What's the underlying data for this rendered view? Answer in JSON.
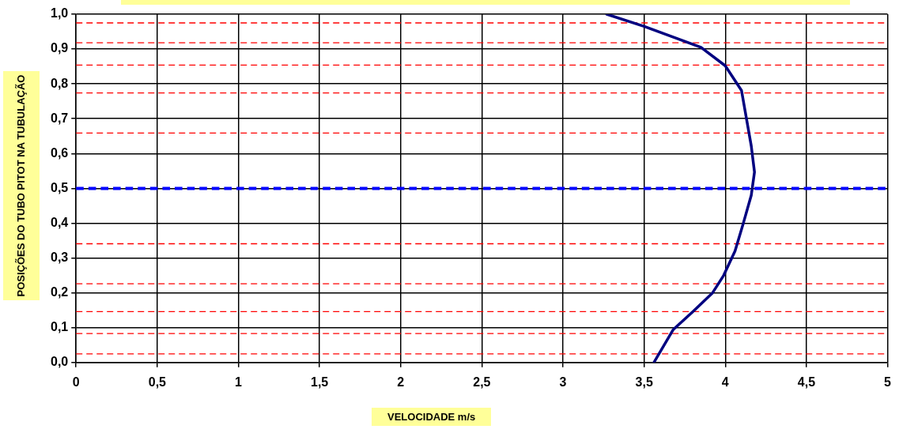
{
  "chart_data": {
    "type": "line",
    "xlabel": "VELOCIDADE m/s",
    "ylabel": "POSIÇÕES DO TUBO PITOT NA TUBULAÇÃO",
    "series": [
      {
        "color": "#000080",
        "x": [
          3.27,
          3.5,
          3.85,
          4.0,
          4.1,
          4.16,
          4.18,
          4.16,
          4.11,
          4.06,
          3.99,
          3.92,
          3.8,
          3.68,
          3.56
        ],
        "values": [
          1.0,
          0.965,
          0.905,
          0.852,
          0.781,
          0.622,
          0.547,
          0.48,
          0.398,
          0.32,
          0.25,
          0.199,
          0.146,
          0.095,
          0.0
        ]
      }
    ],
    "xlim": [
      0,
      5
    ],
    "xticks": [
      0,
      {
        "value": 0.5,
        "label": "0,5"
      },
      1,
      {
        "value": 1.5,
        "label": "1,5"
      },
      2,
      {
        "value": 2.5,
        "label": "2,5"
      },
      3,
      {
        "value": 3.5,
        "label": "3,5"
      },
      4,
      {
        "value": 4.5,
        "label": "4,5"
      },
      5
    ],
    "ylim": [
      0,
      1
    ],
    "yticks": [
      {
        "value": 0,
        "label": "0,0"
      },
      {
        "value": 0.1,
        "label": "0,1"
      },
      {
        "value": 0.2,
        "label": "0,2"
      },
      {
        "value": 0.3,
        "label": "0,3"
      },
      {
        "value": 0.4,
        "label": "0,4"
      },
      {
        "value": 0.5,
        "label": "0,5"
      },
      {
        "value": 0.6,
        "label": "0,6"
      },
      {
        "value": 0.7,
        "label": "0,7"
      },
      {
        "value": 0.8,
        "label": "0,8"
      },
      {
        "value": 0.9,
        "label": "0,9"
      },
      {
        "value": 1,
        "label": "1,0"
      }
    ],
    "ref_lines": [
      {
        "axis": "y",
        "value": 0.025,
        "color": "#ff0000",
        "line_style": "dashed"
      },
      {
        "axis": "y",
        "value": 0.083,
        "color": "#ff0000",
        "line_style": "dashed"
      },
      {
        "axis": "y",
        "value": 0.146,
        "color": "#ff0000",
        "line_style": "dashed"
      },
      {
        "axis": "y",
        "value": 0.226,
        "color": "#ff0000",
        "line_style": "dashed"
      },
      {
        "axis": "y",
        "value": 0.341,
        "color": "#ff0000",
        "line_style": "dashed"
      },
      {
        "axis": "y",
        "value": 0.5,
        "color": "#0000ff",
        "line_style": "dashed"
      },
      {
        "axis": "y",
        "value": 0.659,
        "color": "#ff0000",
        "line_style": "dashed"
      },
      {
        "axis": "y",
        "value": 0.774,
        "color": "#ff0000",
        "line_style": "dashed"
      },
      {
        "axis": "y",
        "value": 0.854,
        "color": "#ff0000",
        "line_style": "dashed"
      },
      {
        "axis": "y",
        "value": 0.918,
        "color": "#ff0000",
        "line_style": "dashed"
      },
      {
        "axis": "y",
        "value": 0.975,
        "color": "#ff0000",
        "line_style": "dashed"
      }
    ],
    "grid": true,
    "legend": false,
    "marker": "none",
    "line_style": "solid"
  }
}
